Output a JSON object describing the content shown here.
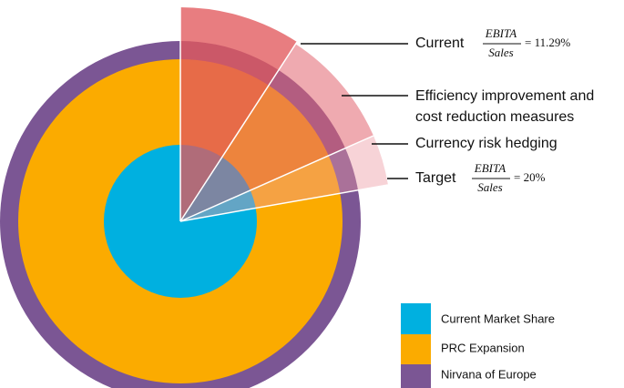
{
  "callouts": [
    {
      "text": "Current",
      "numerator": "EBITA",
      "denominator": "Sales",
      "result": "= 11.29%"
    },
    {
      "lines": [
        "Efficiency improvement and",
        "cost reduction measures"
      ]
    },
    {
      "text": "Currency risk hedging"
    },
    {
      "text": "Target",
      "numerator": "EBITA",
      "denominator": "Sales",
      "result": "= 20%"
    }
  ],
  "legend": [
    "Current Market Share",
    "PRC Expansion",
    "Nirvana of Europe"
  ]
}
